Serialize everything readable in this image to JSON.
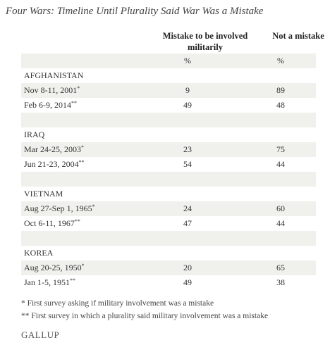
{
  "header": {
    "title": "Four Wars: Timeline Until Plurality Said War Was a Mistake"
  },
  "table": {
    "columns": [
      "Mistake to be involved militarily",
      "Not a mistake"
    ],
    "units": [
      "%",
      "%"
    ],
    "sections": [
      {
        "name": "AFGHANISTAN",
        "rows": [
          {
            "date": "Nov 8-11, 2001",
            "note": "*",
            "values": [
              9,
              89
            ]
          },
          {
            "date": "Feb 6-9, 2014",
            "note": "**",
            "values": [
              49,
              48
            ]
          }
        ]
      },
      {
        "name": "IRAQ",
        "rows": [
          {
            "date": "Mar 24-25, 2003",
            "note": "*",
            "values": [
              23,
              75
            ]
          },
          {
            "date": "Jun 21-23, 2004",
            "note": "**",
            "values": [
              54,
              44
            ]
          }
        ]
      },
      {
        "name": "VIETNAM",
        "rows": [
          {
            "date": "Aug 27-Sep 1, 1965",
            "note": "*",
            "values": [
              24,
              60
            ]
          },
          {
            "date": "Oct 6-11, 1967",
            "note": "**",
            "values": [
              47,
              44
            ]
          }
        ]
      },
      {
        "name": "KOREA",
        "rows": [
          {
            "date": "Aug 20-25, 1950",
            "note": "*",
            "values": [
              20,
              65
            ]
          },
          {
            "date": "Jan 1-5, 1951",
            "note": "**",
            "values": [
              49,
              38
            ]
          }
        ]
      }
    ]
  },
  "footnotes": [
    "* First survey asking if military involvement was a mistake",
    "** First survey in which a plurality said military involvement was a mistake"
  ],
  "brand": "GALLUP"
}
